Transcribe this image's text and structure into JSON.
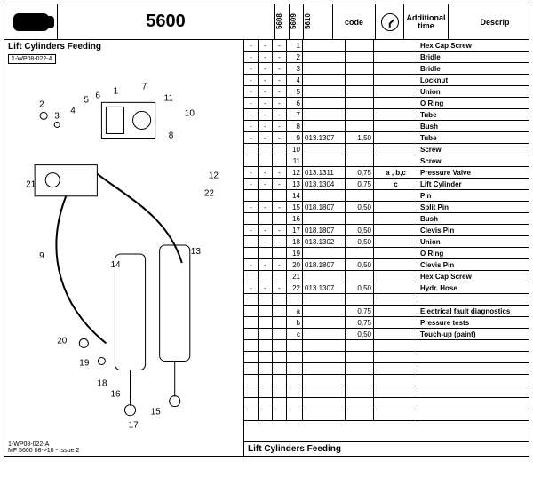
{
  "header": {
    "title": "5600",
    "models": [
      "5608",
      "5609",
      "5610"
    ],
    "code_label": "code",
    "additional_time_label": "Additional\ntime",
    "description_label": "Descrip"
  },
  "left": {
    "section_title": "Lift Cylinders Feeding",
    "tag": "1-WP08-022-A",
    "issue_code": "1-WP08-022-A",
    "issue_text": "MF 5600 08->10  - Issue 2"
  },
  "footer": {
    "title": "Lift Cylinders Feeding"
  },
  "rows": [
    {
      "m": [
        "-",
        "-",
        "-"
      ],
      "idx": "1",
      "code": "",
      "time": "",
      "add": "",
      "desc": "Hex Cap Screw"
    },
    {
      "m": [
        "-",
        "-",
        "-"
      ],
      "idx": "2",
      "code": "",
      "time": "",
      "add": "",
      "desc": "Bridle"
    },
    {
      "m": [
        "-",
        "-",
        "-"
      ],
      "idx": "3",
      "code": "",
      "time": "",
      "add": "",
      "desc": "Bridle"
    },
    {
      "m": [
        "-",
        "-",
        "-"
      ],
      "idx": "4",
      "code": "",
      "time": "",
      "add": "",
      "desc": "Locknut"
    },
    {
      "m": [
        "-",
        "-",
        "-"
      ],
      "idx": "5",
      "code": "",
      "time": "",
      "add": "",
      "desc": "Union"
    },
    {
      "m": [
        "-",
        "-",
        "-"
      ],
      "idx": "6",
      "code": "",
      "time": "",
      "add": "",
      "desc": "O Ring"
    },
    {
      "m": [
        "-",
        "-",
        "-"
      ],
      "idx": "7",
      "code": "",
      "time": "",
      "add": "",
      "desc": "Tube"
    },
    {
      "m": [
        "-",
        "-",
        "-"
      ],
      "idx": "8",
      "code": "",
      "time": "",
      "add": "",
      "desc": "Bush"
    },
    {
      "m": [
        "-",
        "-",
        "-"
      ],
      "idx": "9",
      "code": "013.1307",
      "time": "1,50",
      "add": "",
      "desc": "Tube"
    },
    {
      "m": [
        "",
        "",
        ""
      ],
      "idx": "10",
      "code": "",
      "time": "",
      "add": "",
      "desc": "Screw"
    },
    {
      "m": [
        "",
        "",
        ""
      ],
      "idx": "11",
      "code": "",
      "time": "",
      "add": "",
      "desc": "Screw"
    },
    {
      "m": [
        "-",
        "-",
        "-"
      ],
      "idx": "12",
      "code": "013.1311",
      "time": "0,75",
      "add": "a , b,c",
      "desc": "Pressure Valve"
    },
    {
      "m": [
        "-",
        "-",
        "-"
      ],
      "idx": "13",
      "code": "013.1304",
      "time": "0,75",
      "add": "c",
      "desc": "Lift Cylinder"
    },
    {
      "m": [
        "",
        "",
        ""
      ],
      "idx": "14",
      "code": "",
      "time": "",
      "add": "",
      "desc": "Pin"
    },
    {
      "m": [
        "-",
        "-",
        "-"
      ],
      "idx": "15",
      "code": "018.1807",
      "time": "0,50",
      "add": "",
      "desc": "Split Pin"
    },
    {
      "m": [
        "",
        "",
        ""
      ],
      "idx": "16",
      "code": "",
      "time": "",
      "add": "",
      "desc": "Bush"
    },
    {
      "m": [
        "-",
        "-",
        "-"
      ],
      "idx": "17",
      "code": "018.1807",
      "time": "0,50",
      "add": "",
      "desc": "Clevis Pin"
    },
    {
      "m": [
        "-",
        "-",
        "-"
      ],
      "idx": "18",
      "code": "013.1302",
      "time": "0,50",
      "add": "",
      "desc": "Union"
    },
    {
      "m": [
        "",
        "",
        ""
      ],
      "idx": "19",
      "code": "",
      "time": "",
      "add": "",
      "desc": "O Ring"
    },
    {
      "m": [
        "-",
        "-",
        "-"
      ],
      "idx": "20",
      "code": "018.1807",
      "time": "0,50",
      "add": "",
      "desc": "Clevis Pin"
    },
    {
      "m": [
        "",
        "",
        ""
      ],
      "idx": "21",
      "code": "",
      "time": "",
      "add": "",
      "desc": "Hex Cap Screw"
    },
    {
      "m": [
        "-",
        "-",
        "-"
      ],
      "idx": "22",
      "code": "013.1307",
      "time": "0,50",
      "add": "",
      "desc": "Hydr. Hose"
    },
    {
      "m": [
        "",
        "",
        ""
      ],
      "idx": "",
      "code": "",
      "time": "",
      "add": "",
      "desc": ""
    },
    {
      "m": [
        "",
        "",
        ""
      ],
      "idx": "a",
      "code": "",
      "time": "0,75",
      "add": "",
      "desc": "Electrical fault diagnostics"
    },
    {
      "m": [
        "",
        "",
        ""
      ],
      "idx": "b",
      "code": "",
      "time": "0,75",
      "add": "",
      "desc": "Pressure tests"
    },
    {
      "m": [
        "",
        "",
        ""
      ],
      "idx": "c",
      "code": "",
      "time": "0,50",
      "add": "",
      "desc": "Touch-up (paint)"
    },
    {
      "m": [
        "",
        "",
        ""
      ],
      "idx": "",
      "code": "",
      "time": "",
      "add": "",
      "desc": ""
    },
    {
      "m": [
        "",
        "",
        ""
      ],
      "idx": "",
      "code": "",
      "time": "",
      "add": "",
      "desc": ""
    },
    {
      "m": [
        "",
        "",
        ""
      ],
      "idx": "",
      "code": "",
      "time": "",
      "add": "",
      "desc": ""
    },
    {
      "m": [
        "",
        "",
        ""
      ],
      "idx": "",
      "code": "",
      "time": "",
      "add": "",
      "desc": ""
    },
    {
      "m": [
        "",
        "",
        ""
      ],
      "idx": "",
      "code": "",
      "time": "",
      "add": "",
      "desc": ""
    },
    {
      "m": [
        "",
        "",
        ""
      ],
      "idx": "",
      "code": "",
      "time": "",
      "add": "",
      "desc": ""
    },
    {
      "m": [
        "",
        "",
        ""
      ],
      "idx": "",
      "code": "",
      "time": "",
      "add": "",
      "desc": ""
    }
  ],
  "diagram_labels": [
    "1",
    "2",
    "3",
    "4",
    "5",
    "6",
    "7",
    "8",
    "9",
    "10",
    "11",
    "12",
    "13",
    "14",
    "15",
    "16",
    "17",
    "18",
    "19",
    "20",
    "21",
    "22"
  ]
}
